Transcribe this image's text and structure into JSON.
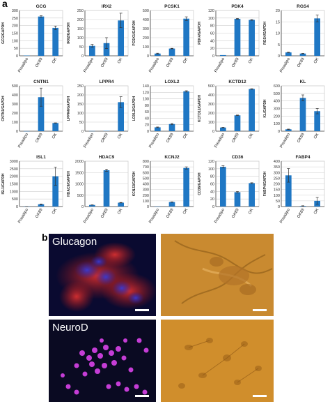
{
  "panel_a_label": "a",
  "panel_b_label": "b",
  "micrographs": {
    "glucagon_label": "Glucagon",
    "neurod_label": "NeuroD"
  },
  "colors": {
    "bar": "#1f77c4",
    "axis": "#444444",
    "grid": "#cfcfcf",
    "fluor_blue": "#1a1aa0",
    "fluor_red": "#c02020",
    "fluor_magenta": "#d040e0",
    "dic_orange": "#c98a30"
  },
  "chart_data": [
    {
      "type": "bar",
      "title": "GCG",
      "ylabel": "GCG/GAPDH",
      "categories": [
        "Preadipo",
        "OK89",
        "OK"
      ],
      "values": [
        2,
        260,
        185
      ],
      "errors": [
        0,
        5,
        12
      ],
      "ylim": [
        0,
        300
      ],
      "yticks": [
        0,
        50,
        100,
        150,
        200,
        250,
        300
      ]
    },
    {
      "type": "bar",
      "title": "IRX2",
      "ylabel": "IRX2/GAPDH",
      "categories": [
        "Preadipo",
        "OK89",
        "OK"
      ],
      "values": [
        55,
        70,
        195
      ],
      "errors": [
        8,
        30,
        40
      ],
      "ylim": [
        0,
        250
      ],
      "yticks": [
        0,
        50,
        100,
        150,
        200,
        250
      ]
    },
    {
      "type": "bar",
      "title": "PCSK1",
      "ylabel": "PCSK1/GAPDH",
      "categories": [
        "Preadipo",
        "OK89",
        "OK"
      ],
      "values": [
        25,
        80,
        410
      ],
      "errors": [
        4,
        3,
        20
      ],
      "ylim": [
        0,
        500
      ],
      "yticks": [
        0,
        100,
        200,
        300,
        400,
        500
      ]
    },
    {
      "type": "bar",
      "title": "PDK4",
      "ylabel": "PDK4/GAPDH",
      "categories": [
        "Preadipo",
        "OK89",
        "OK"
      ],
      "values": [
        2,
        98,
        95
      ],
      "errors": [
        0,
        1,
        1
      ],
      "ylim": [
        0,
        120
      ],
      "yticks": [
        0,
        20,
        40,
        60,
        80,
        100,
        120
      ]
    },
    {
      "type": "bar",
      "title": "RGS4",
      "ylabel": "RGS4/GAPDH",
      "categories": [
        "Preadipo",
        "OK89",
        "OK"
      ],
      "values": [
        1.5,
        1,
        16.5
      ],
      "errors": [
        0.1,
        0.1,
        1.5
      ],
      "ylim": [
        0,
        20
      ],
      "yticks": [
        0,
        5,
        10,
        15,
        20
      ]
    },
    {
      "type": "bar",
      "title": "CNTN1",
      "ylabel": "CNTN1/GAPDH",
      "categories": [
        "Preadipo",
        "OK89",
        "OK"
      ],
      "values": [
        1,
        375,
        90
      ],
      "errors": [
        0,
        100,
        2
      ],
      "ylim": [
        0,
        500
      ],
      "yticks": [
        0,
        100,
        200,
        300,
        400,
        500
      ]
    },
    {
      "type": "bar",
      "title": "LPPR4",
      "ylabel": "LPPR4/GAPDH",
      "categories": [
        "Preadipo",
        "OK89",
        "OK"
      ],
      "values": [
        1,
        2,
        160
      ],
      "errors": [
        0,
        0,
        30
      ],
      "ylim": [
        0,
        250
      ],
      "yticks": [
        0,
        50,
        100,
        150,
        200,
        250
      ]
    },
    {
      "type": "bar",
      "title": "LOXL2",
      "ylabel": "LOXL2/GAPDH",
      "categories": [
        "Preadipo",
        "OK89",
        "OK"
      ],
      "values": [
        12,
        22,
        123
      ],
      "errors": [
        1,
        2,
        2
      ],
      "ylim": [
        0,
        140
      ],
      "yticks": [
        0,
        20,
        40,
        60,
        80,
        100,
        120,
        140
      ]
    },
    {
      "type": "bar",
      "title": "KCTD12",
      "ylabel": "KCTD12/GAPDH",
      "categories": [
        "Preadipo",
        "OK89",
        "OK"
      ],
      "values": [
        40,
        175,
        465
      ],
      "errors": [
        3,
        3,
        3
      ],
      "ylim": [
        0,
        500
      ],
      "yticks": [
        0,
        100,
        200,
        300,
        400,
        500
      ]
    },
    {
      "type": "bar",
      "title": "KL",
      "ylabel": "KL/GAPDH",
      "categories": [
        "Preadipo",
        "OK89",
        "OK"
      ],
      "values": [
        25,
        440,
        265
      ],
      "errors": [
        3,
        40,
        35
      ],
      "ylim": [
        0,
        600
      ],
      "yticks": [
        0,
        100,
        200,
        300,
        400,
        500,
        600
      ]
    },
    {
      "type": "bar",
      "title": "ISL1",
      "ylabel": "ISL1/GAPDH",
      "categories": [
        "Preadipo",
        "OK89",
        "OK"
      ],
      "values": [
        5,
        150,
        2000
      ],
      "errors": [
        2,
        20,
        600
      ],
      "ylim": [
        0,
        3000
      ],
      "yticks": [
        0,
        500,
        1000,
        1500,
        2000,
        2500,
        3000
      ]
    },
    {
      "type": "bar",
      "title": "HDAC9",
      "ylabel": "HDAC9/GAPDH",
      "categories": [
        "Preadipo",
        "OK89",
        "OK"
      ],
      "values": [
        70,
        1600,
        170
      ],
      "errors": [
        5,
        50,
        10
      ],
      "ylim": [
        0,
        2000
      ],
      "yticks": [
        0,
        500,
        1000,
        1500,
        2000
      ]
    },
    {
      "type": "bar",
      "title": "KCNJ2",
      "ylabel": "KCNJ2/GAPDH",
      "categories": [
        "Preadipo",
        "OK89",
        "OK"
      ],
      "values": [
        2,
        80,
        680
      ],
      "errors": [
        0,
        3,
        20
      ],
      "ylim": [
        0,
        800
      ],
      "yticks": [
        0,
        100,
        200,
        300,
        400,
        500,
        600,
        700,
        800
      ]
    },
    {
      "type": "bar",
      "title": "CD36",
      "ylabel": "CD36/GAPDH",
      "categories": [
        "Preadipo",
        "OK89",
        "OK"
      ],
      "values": [
        105,
        38,
        62
      ],
      "errors": [
        3,
        2,
        1
      ],
      "ylim": [
        0,
        120
      ],
      "yticks": [
        0,
        20,
        40,
        60,
        80,
        100,
        120
      ]
    },
    {
      "type": "bar",
      "title": "FABP4",
      "ylabel": "FABP4/GAPDH",
      "categories": [
        "Preadipo",
        "OK89",
        "OK"
      ],
      "values": [
        275,
        5,
        50
      ],
      "errors": [
        60,
        2,
        30
      ],
      "ylim": [
        0,
        400
      ],
      "yticks": [
        0,
        50,
        100,
        150,
        200,
        250,
        300,
        350,
        400
      ]
    }
  ]
}
